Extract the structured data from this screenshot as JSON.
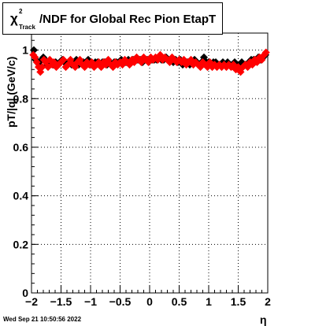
{
  "chart_data": {
    "type": "scatter",
    "title": {
      "symbol": "χ",
      "superscript": "2",
      "subscript": "Track",
      "text": "/NDF for Global Rec Pion EtapT"
    },
    "xlabel": "η",
    "ylabel": "pT/|q| (GeV/c)",
    "xlim": [
      -2,
      2
    ],
    "ylim": [
      0,
      1.07
    ],
    "x_ticks": [
      -2,
      -1.5,
      -1,
      -0.5,
      0,
      0.5,
      1,
      1.5,
      2
    ],
    "x_tick_labels": [
      "−2",
      "−1.5",
      "−1",
      "−0.5",
      "0",
      "0.5",
      "1",
      "1.5",
      "2"
    ],
    "y_ticks": [
      0,
      0.2,
      0.4,
      0.6,
      0.8,
      1
    ],
    "y_tick_labels": [
      "0",
      "0.2",
      "0.4",
      "0.6",
      "0.8",
      "1"
    ],
    "grid": true,
    "series": [
      {
        "color": "#000000",
        "marker": "diamond",
        "points": [
          [
            -1.96,
            1.0
          ],
          [
            -1.93,
            0.96
          ],
          [
            -1.9,
            0.95
          ],
          [
            -1.87,
            0.94
          ],
          [
            -1.83,
            0.96
          ],
          [
            -1.8,
            0.97
          ],
          [
            -1.77,
            0.96
          ],
          [
            -1.73,
            0.94
          ],
          [
            -1.7,
            0.95
          ],
          [
            -1.66,
            0.95
          ],
          [
            -1.63,
            0.94
          ],
          [
            -1.59,
            0.95
          ],
          [
            -1.55,
            0.94
          ],
          [
            -1.52,
            0.95
          ],
          [
            -1.48,
            0.96
          ],
          [
            -1.44,
            0.95
          ],
          [
            -1.4,
            0.94
          ],
          [
            -1.36,
            0.95
          ],
          [
            -1.32,
            0.94
          ],
          [
            -1.28,
            0.95
          ],
          [
            -1.24,
            0.96
          ],
          [
            -1.2,
            0.94
          ],
          [
            -1.16,
            0.95
          ],
          [
            -1.12,
            0.95
          ],
          [
            -1.08,
            0.94
          ],
          [
            -1.04,
            0.96
          ],
          [
            -1.0,
            0.95
          ],
          [
            -0.96,
            0.94
          ],
          [
            -0.92,
            0.95
          ],
          [
            -0.88,
            0.95
          ],
          [
            -0.84,
            0.94
          ],
          [
            -0.8,
            0.95
          ],
          [
            -0.76,
            0.95
          ],
          [
            -0.72,
            0.94
          ],
          [
            -0.68,
            0.95
          ],
          [
            -0.64,
            0.94
          ],
          [
            -0.6,
            0.95
          ],
          [
            -0.56,
            0.95
          ],
          [
            -0.52,
            0.95
          ],
          [
            -0.48,
            0.96
          ],
          [
            -0.44,
            0.95
          ],
          [
            -0.4,
            0.95
          ],
          [
            -0.36,
            0.96
          ],
          [
            -0.32,
            0.95
          ],
          [
            -0.28,
            0.96
          ],
          [
            -0.24,
            0.96
          ],
          [
            -0.2,
            0.96
          ],
          [
            -0.16,
            0.96
          ],
          [
            -0.12,
            0.95
          ],
          [
            -0.08,
            0.96
          ],
          [
            -0.04,
            0.96
          ],
          [
            0.0,
            0.96
          ],
          [
            0.04,
            0.96
          ],
          [
            0.08,
            0.96
          ],
          [
            0.12,
            0.96
          ],
          [
            0.16,
            0.97
          ],
          [
            0.2,
            0.96
          ],
          [
            0.24,
            0.96
          ],
          [
            0.28,
            0.97
          ],
          [
            0.32,
            0.96
          ],
          [
            0.36,
            0.96
          ],
          [
            0.4,
            0.95
          ],
          [
            0.44,
            0.96
          ],
          [
            0.48,
            0.95
          ],
          [
            0.52,
            0.96
          ],
          [
            0.56,
            0.94
          ],
          [
            0.6,
            0.95
          ],
          [
            0.64,
            0.95
          ],
          [
            0.68,
            0.94
          ],
          [
            0.72,
            0.95
          ],
          [
            0.76,
            0.96
          ],
          [
            0.8,
            0.95
          ],
          [
            0.84,
            0.94
          ],
          [
            0.88,
            0.95
          ],
          [
            0.92,
            0.97
          ],
          [
            0.96,
            0.95
          ],
          [
            1.0,
            0.95
          ],
          [
            1.04,
            0.94
          ],
          [
            1.08,
            0.95
          ],
          [
            1.12,
            0.95
          ],
          [
            1.16,
            0.94
          ],
          [
            1.2,
            0.94
          ],
          [
            1.24,
            0.95
          ],
          [
            1.28,
            0.94
          ],
          [
            1.32,
            0.95
          ],
          [
            1.36,
            0.94
          ],
          [
            1.4,
            0.94
          ],
          [
            1.44,
            0.95
          ],
          [
            1.48,
            0.94
          ],
          [
            1.52,
            0.94
          ],
          [
            1.56,
            0.95
          ],
          [
            1.6,
            0.94
          ],
          [
            1.64,
            0.94
          ],
          [
            1.68,
            0.95
          ],
          [
            1.72,
            0.96
          ],
          [
            1.76,
            0.96
          ],
          [
            1.8,
            0.96
          ],
          [
            1.84,
            0.97
          ],
          [
            1.88,
            0.96
          ],
          [
            1.92,
            0.97
          ],
          [
            1.96,
            0.98
          ]
        ]
      },
      {
        "color": "#ff0000",
        "marker": "diamond",
        "points": [
          [
            -1.97,
            0.98
          ],
          [
            -1.94,
            0.97
          ],
          [
            -1.91,
            0.95
          ],
          [
            -1.88,
            0.93
          ],
          [
            -1.85,
            0.91
          ],
          [
            -1.82,
            0.93
          ],
          [
            -1.79,
            0.96
          ],
          [
            -1.76,
            0.95
          ],
          [
            -1.72,
            0.93
          ],
          [
            -1.69,
            0.96
          ],
          [
            -1.65,
            0.94
          ],
          [
            -1.62,
            0.95
          ],
          [
            -1.58,
            0.93
          ],
          [
            -1.54,
            0.94
          ],
          [
            -1.5,
            0.95
          ],
          [
            -1.46,
            0.96
          ],
          [
            -1.42,
            0.93
          ],
          [
            -1.38,
            0.94
          ],
          [
            -1.34,
            0.96
          ],
          [
            -1.3,
            0.94
          ],
          [
            -1.26,
            0.93
          ],
          [
            -1.22,
            0.95
          ],
          [
            -1.18,
            0.96
          ],
          [
            -1.14,
            0.94
          ],
          [
            -1.1,
            0.93
          ],
          [
            -1.06,
            0.95
          ],
          [
            -1.02,
            0.94
          ],
          [
            -0.98,
            0.95
          ],
          [
            -0.94,
            0.93
          ],
          [
            -0.9,
            0.94
          ],
          [
            -0.86,
            0.95
          ],
          [
            -0.82,
            0.93
          ],
          [
            -0.78,
            0.95
          ],
          [
            -0.74,
            0.94
          ],
          [
            -0.7,
            0.96
          ],
          [
            -0.66,
            0.94
          ],
          [
            -0.62,
            0.93
          ],
          [
            -0.58,
            0.95
          ],
          [
            -0.54,
            0.94
          ],
          [
            -0.5,
            0.95
          ],
          [
            -0.46,
            0.94
          ],
          [
            -0.42,
            0.96
          ],
          [
            -0.38,
            0.95
          ],
          [
            -0.34,
            0.94
          ],
          [
            -0.3,
            0.96
          ],
          [
            -0.26,
            0.95
          ],
          [
            -0.22,
            0.97
          ],
          [
            -0.18,
            0.96
          ],
          [
            -0.14,
            0.95
          ],
          [
            -0.1,
            0.97
          ],
          [
            -0.06,
            0.96
          ],
          [
            -0.02,
            0.95
          ],
          [
            0.02,
            0.97
          ],
          [
            0.06,
            0.96
          ],
          [
            0.1,
            0.97
          ],
          [
            0.14,
            0.96
          ],
          [
            0.18,
            0.98
          ],
          [
            0.22,
            0.96
          ],
          [
            0.26,
            0.97
          ],
          [
            0.3,
            0.96
          ],
          [
            0.34,
            0.95
          ],
          [
            0.38,
            0.97
          ],
          [
            0.42,
            0.96
          ],
          [
            0.46,
            0.95
          ],
          [
            0.5,
            0.96
          ],
          [
            0.54,
            0.95
          ],
          [
            0.58,
            0.96
          ],
          [
            0.62,
            0.94
          ],
          [
            0.66,
            0.95
          ],
          [
            0.7,
            0.96
          ],
          [
            0.74,
            0.94
          ],
          [
            0.78,
            0.95
          ],
          [
            0.82,
            0.94
          ],
          [
            0.86,
            0.93
          ],
          [
            0.9,
            0.95
          ],
          [
            0.94,
            0.94
          ],
          [
            0.98,
            0.93
          ],
          [
            1.02,
            0.95
          ],
          [
            1.06,
            0.93
          ],
          [
            1.1,
            0.94
          ],
          [
            1.14,
            0.93
          ],
          [
            1.18,
            0.94
          ],
          [
            1.22,
            0.93
          ],
          [
            1.26,
            0.94
          ],
          [
            1.3,
            0.93
          ],
          [
            1.34,
            0.94
          ],
          [
            1.38,
            0.93
          ],
          [
            1.42,
            0.94
          ],
          [
            1.46,
            0.92
          ],
          [
            1.5,
            0.93
          ],
          [
            1.54,
            0.91
          ],
          [
            1.58,
            0.93
          ],
          [
            1.62,
            0.94
          ],
          [
            1.66,
            0.93
          ],
          [
            1.7,
            0.95
          ],
          [
            1.74,
            0.94
          ],
          [
            1.78,
            0.96
          ],
          [
            1.82,
            0.95
          ],
          [
            1.86,
            0.97
          ],
          [
            1.9,
            0.96
          ],
          [
            1.94,
            0.98
          ],
          [
            1.97,
            0.99
          ]
        ]
      }
    ]
  },
  "footer": {
    "timestamp": "Wed Sep 21 10:50:56 2022"
  }
}
